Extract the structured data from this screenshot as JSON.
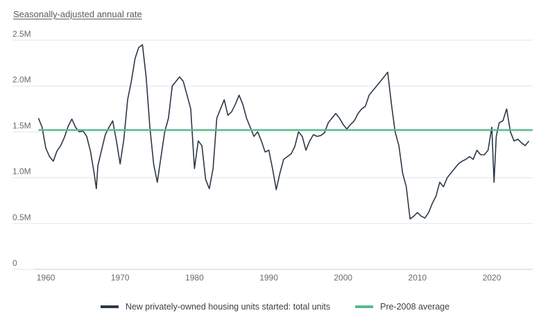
{
  "chart_data": {
    "type": "line",
    "subtitle": "Seasonally-adjusted annual rate",
    "y_ticks": [
      "0",
      "0.5M",
      "1.0M",
      "1.5M",
      "2.0M",
      "2.5M"
    ],
    "y_tick_values": [
      0,
      500000,
      1000000,
      1500000,
      2000000,
      2500000
    ],
    "ylim": [
      0,
      2500000
    ],
    "x_ticks": [
      "1960",
      "1970",
      "1980",
      "1990",
      "2000",
      "2010",
      "2020"
    ],
    "x_tick_values": [
      1960,
      1970,
      1980,
      1990,
      2000,
      2010,
      2020
    ],
    "xlim": [
      1958.5,
      2025.5
    ],
    "series": [
      {
        "name": "New privately-owned housing units started: total units",
        "color": "#2c3848",
        "points": [
          [
            1959.0,
            1650000
          ],
          [
            1959.5,
            1550000
          ],
          [
            1960.0,
            1320000
          ],
          [
            1960.5,
            1230000
          ],
          [
            1961.0,
            1180000
          ],
          [
            1961.5,
            1290000
          ],
          [
            1962.0,
            1350000
          ],
          [
            1962.5,
            1440000
          ],
          [
            1963.0,
            1560000
          ],
          [
            1963.5,
            1640000
          ],
          [
            1964.0,
            1550000
          ],
          [
            1964.5,
            1500000
          ],
          [
            1965.0,
            1510000
          ],
          [
            1965.5,
            1450000
          ],
          [
            1966.0,
            1290000
          ],
          [
            1966.5,
            1050000
          ],
          [
            1966.8,
            880000
          ],
          [
            1967.0,
            1130000
          ],
          [
            1967.5,
            1300000
          ],
          [
            1968.0,
            1470000
          ],
          [
            1968.5,
            1550000
          ],
          [
            1969.0,
            1620000
          ],
          [
            1969.5,
            1400000
          ],
          [
            1970.0,
            1150000
          ],
          [
            1970.5,
            1420000
          ],
          [
            1971.0,
            1850000
          ],
          [
            1971.5,
            2050000
          ],
          [
            1972.0,
            2300000
          ],
          [
            1972.5,
            2420000
          ],
          [
            1973.0,
            2450000
          ],
          [
            1973.5,
            2100000
          ],
          [
            1974.0,
            1550000
          ],
          [
            1974.5,
            1150000
          ],
          [
            1975.0,
            950000
          ],
          [
            1975.5,
            1230000
          ],
          [
            1976.0,
            1500000
          ],
          [
            1976.5,
            1650000
          ],
          [
            1977.0,
            2000000
          ],
          [
            1977.5,
            2050000
          ],
          [
            1978.0,
            2100000
          ],
          [
            1978.5,
            2050000
          ],
          [
            1979.0,
            1900000
          ],
          [
            1979.5,
            1750000
          ],
          [
            1980.0,
            1100000
          ],
          [
            1980.5,
            1400000
          ],
          [
            1981.0,
            1350000
          ],
          [
            1981.5,
            980000
          ],
          [
            1982.0,
            880000
          ],
          [
            1982.5,
            1100000
          ],
          [
            1983.0,
            1650000
          ],
          [
            1983.5,
            1750000
          ],
          [
            1984.0,
            1850000
          ],
          [
            1984.5,
            1680000
          ],
          [
            1985.0,
            1720000
          ],
          [
            1985.5,
            1800000
          ],
          [
            1986.0,
            1900000
          ],
          [
            1986.5,
            1800000
          ],
          [
            1987.0,
            1650000
          ],
          [
            1987.5,
            1550000
          ],
          [
            1988.0,
            1450000
          ],
          [
            1988.5,
            1500000
          ],
          [
            1989.0,
            1400000
          ],
          [
            1989.5,
            1280000
          ],
          [
            1990.0,
            1300000
          ],
          [
            1990.5,
            1100000
          ],
          [
            1991.0,
            870000
          ],
          [
            1991.5,
            1050000
          ],
          [
            1992.0,
            1200000
          ],
          [
            1992.5,
            1230000
          ],
          [
            1993.0,
            1260000
          ],
          [
            1993.5,
            1340000
          ],
          [
            1994.0,
            1500000
          ],
          [
            1994.5,
            1450000
          ],
          [
            1995.0,
            1300000
          ],
          [
            1995.5,
            1400000
          ],
          [
            1996.0,
            1470000
          ],
          [
            1996.5,
            1450000
          ],
          [
            1997.0,
            1460000
          ],
          [
            1997.5,
            1490000
          ],
          [
            1998.0,
            1600000
          ],
          [
            1998.5,
            1650000
          ],
          [
            1999.0,
            1700000
          ],
          [
            1999.5,
            1650000
          ],
          [
            2000.0,
            1580000
          ],
          [
            2000.5,
            1530000
          ],
          [
            2001.0,
            1580000
          ],
          [
            2001.5,
            1620000
          ],
          [
            2002.0,
            1700000
          ],
          [
            2002.5,
            1750000
          ],
          [
            2003.0,
            1780000
          ],
          [
            2003.5,
            1900000
          ],
          [
            2004.0,
            1950000
          ],
          [
            2004.5,
            2000000
          ],
          [
            2005.0,
            2050000
          ],
          [
            2005.5,
            2100000
          ],
          [
            2006.0,
            2150000
          ],
          [
            2006.5,
            1800000
          ],
          [
            2007.0,
            1500000
          ],
          [
            2007.5,
            1350000
          ],
          [
            2008.0,
            1050000
          ],
          [
            2008.5,
            900000
          ],
          [
            2009.0,
            550000
          ],
          [
            2009.5,
            580000
          ],
          [
            2010.0,
            620000
          ],
          [
            2010.5,
            580000
          ],
          [
            2011.0,
            560000
          ],
          [
            2011.5,
            620000
          ],
          [
            2012.0,
            720000
          ],
          [
            2012.5,
            800000
          ],
          [
            2013.0,
            950000
          ],
          [
            2013.5,
            900000
          ],
          [
            2014.0,
            1000000
          ],
          [
            2014.5,
            1050000
          ],
          [
            2015.0,
            1100000
          ],
          [
            2015.5,
            1150000
          ],
          [
            2016.0,
            1180000
          ],
          [
            2016.5,
            1200000
          ],
          [
            2017.0,
            1230000
          ],
          [
            2017.5,
            1200000
          ],
          [
            2018.0,
            1300000
          ],
          [
            2018.5,
            1250000
          ],
          [
            2019.0,
            1250000
          ],
          [
            2019.5,
            1300000
          ],
          [
            2020.0,
            1550000
          ],
          [
            2020.3,
            950000
          ],
          [
            2020.6,
            1450000
          ],
          [
            2021.0,
            1600000
          ],
          [
            2021.5,
            1620000
          ],
          [
            2022.0,
            1750000
          ],
          [
            2022.5,
            1500000
          ],
          [
            2023.0,
            1400000
          ],
          [
            2023.5,
            1420000
          ],
          [
            2024.0,
            1380000
          ],
          [
            2024.5,
            1350000
          ],
          [
            2025.0,
            1400000
          ]
        ]
      },
      {
        "name": "Pre-2008 average",
        "color": "#5cb88f",
        "value": 1520000
      }
    ]
  }
}
